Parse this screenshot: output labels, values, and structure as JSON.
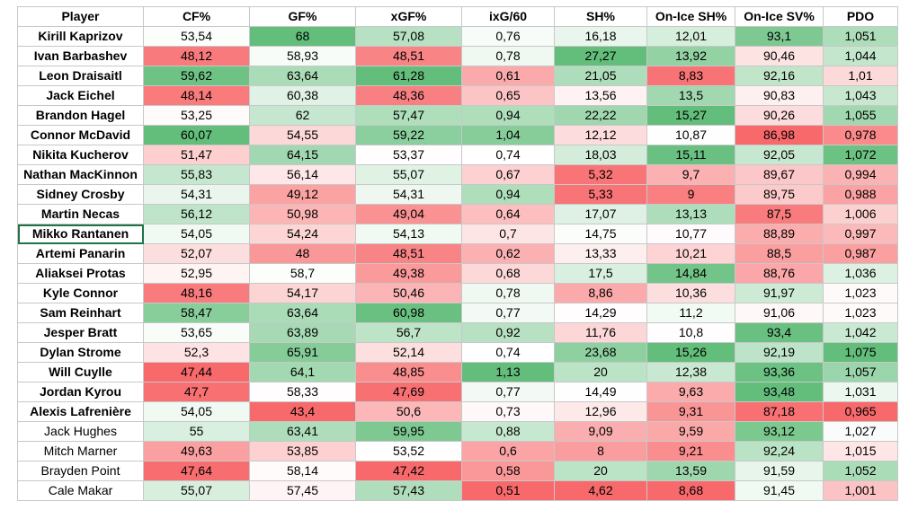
{
  "headers": [
    "Player",
    "CF%",
    "GF%",
    "xGF%",
    "ixG/60",
    "SH%",
    "On-Ice SH%",
    "On-Ice SV%",
    "PDO"
  ],
  "colors": {
    "high": "#63be7b",
    "mid": "#ffffff",
    "low": "#f8696b",
    "grid": "#c8c8c8",
    "selection": "#217346"
  },
  "selected_cell": "Mikko Rantanen",
  "rows": [
    {
      "player": "Kirill Kaprizov",
      "bold": true,
      "values": [
        "53,54",
        "68",
        "57,08",
        "0,76",
        "16,18",
        "12,01",
        "93,1",
        "1,051"
      ]
    },
    {
      "player": "Ivan Barbashev",
      "bold": true,
      "values": [
        "48,12",
        "58,93",
        "48,51",
        "0,78",
        "27,27",
        "13,92",
        "90,46",
        "1,044"
      ]
    },
    {
      "player": "Leon Draisaitl",
      "bold": true,
      "values": [
        "59,62",
        "63,64",
        "61,28",
        "0,61",
        "21,05",
        "8,83",
        "92,16",
        "1,01"
      ]
    },
    {
      "player": "Jack Eichel",
      "bold": true,
      "values": [
        "48,14",
        "60,38",
        "48,36",
        "0,65",
        "13,56",
        "13,5",
        "90,83",
        "1,043"
      ]
    },
    {
      "player": "Brandon Hagel",
      "bold": true,
      "values": [
        "53,25",
        "62",
        "57,47",
        "0,94",
        "22,22",
        "15,27",
        "90,26",
        "1,055"
      ]
    },
    {
      "player": "Connor McDavid",
      "bold": true,
      "values": [
        "60,07",
        "54,55",
        "59,22",
        "1,04",
        "12,12",
        "10,87",
        "86,98",
        "0,978"
      ]
    },
    {
      "player": "Nikita Kucherov",
      "bold": true,
      "values": [
        "51,47",
        "64,15",
        "53,37",
        "0,74",
        "18,03",
        "15,11",
        "92,05",
        "1,072"
      ]
    },
    {
      "player": "Nathan MacKinnon",
      "bold": true,
      "values": [
        "55,83",
        "56,14",
        "55,07",
        "0,67",
        "5,32",
        "9,7",
        "89,67",
        "0,994"
      ]
    },
    {
      "player": "Sidney Crosby",
      "bold": true,
      "values": [
        "54,31",
        "49,12",
        "54,31",
        "0,94",
        "5,33",
        "9",
        "89,75",
        "0,988"
      ]
    },
    {
      "player": "Martin Necas",
      "bold": true,
      "values": [
        "56,12",
        "50,98",
        "49,04",
        "0,64",
        "17,07",
        "13,13",
        "87,5",
        "1,006"
      ]
    },
    {
      "player": "Mikko Rantanen",
      "bold": true,
      "values": [
        "54,05",
        "54,24",
        "54,13",
        "0,7",
        "14,75",
        "10,77",
        "88,89",
        "0,997"
      ]
    },
    {
      "player": "Artemi Panarin",
      "bold": true,
      "values": [
        "52,07",
        "48",
        "48,51",
        "0,62",
        "13,33",
        "10,21",
        "88,5",
        "0,987"
      ]
    },
    {
      "player": "Aliaksei Protas",
      "bold": true,
      "values": [
        "52,95",
        "58,7",
        "49,38",
        "0,68",
        "17,5",
        "14,84",
        "88,76",
        "1,036"
      ]
    },
    {
      "player": "Kyle Connor",
      "bold": true,
      "values": [
        "48,16",
        "54,17",
        "50,46",
        "0,78",
        "8,86",
        "10,36",
        "91,97",
        "1,023"
      ]
    },
    {
      "player": "Sam Reinhart",
      "bold": true,
      "values": [
        "58,47",
        "63,64",
        "60,98",
        "0,77",
        "14,29",
        "11,2",
        "91,06",
        "1,023"
      ]
    },
    {
      "player": "Jesper Bratt",
      "bold": true,
      "values": [
        "53,65",
        "63,89",
        "56,7",
        "0,92",
        "11,76",
        "10,8",
        "93,4",
        "1,042"
      ]
    },
    {
      "player": "Dylan Strome",
      "bold": true,
      "values": [
        "52,3",
        "65,91",
        "52,14",
        "0,74",
        "23,68",
        "15,26",
        "92,19",
        "1,075"
      ]
    },
    {
      "player": "Will Cuylle",
      "bold": true,
      "values": [
        "47,44",
        "64,1",
        "48,85",
        "1,13",
        "20",
        "12,38",
        "93,36",
        "1,057"
      ]
    },
    {
      "player": "Jordan Kyrou",
      "bold": true,
      "values": [
        "47,7",
        "58,33",
        "47,69",
        "0,77",
        "14,49",
        "9,63",
        "93,48",
        "1,031"
      ]
    },
    {
      "player": "Alexis Lafrenière",
      "bold": true,
      "values": [
        "54,05",
        "43,4",
        "50,6",
        "0,73",
        "12,96",
        "9,31",
        "87,18",
        "0,965"
      ]
    },
    {
      "player": "Jack Hughes",
      "bold": false,
      "values": [
        "55",
        "63,41",
        "59,95",
        "0,88",
        "9,09",
        "9,59",
        "93,12",
        "1,027"
      ]
    },
    {
      "player": "Mitch Marner",
      "bold": false,
      "values": [
        "49,63",
        "53,85",
        "53,52",
        "0,6",
        "8",
        "9,21",
        "92,24",
        "1,015"
      ]
    },
    {
      "player": "Brayden Point",
      "bold": false,
      "values": [
        "47,64",
        "58,14",
        "47,42",
        "0,58",
        "20",
        "13,59",
        "91,59",
        "1,052"
      ]
    },
    {
      "player": "Cale Makar",
      "bold": false,
      "values": [
        "55,07",
        "57,45",
        "57,43",
        "0,51",
        "4,62",
        "8,68",
        "91,45",
        "1,001"
      ]
    }
  ]
}
